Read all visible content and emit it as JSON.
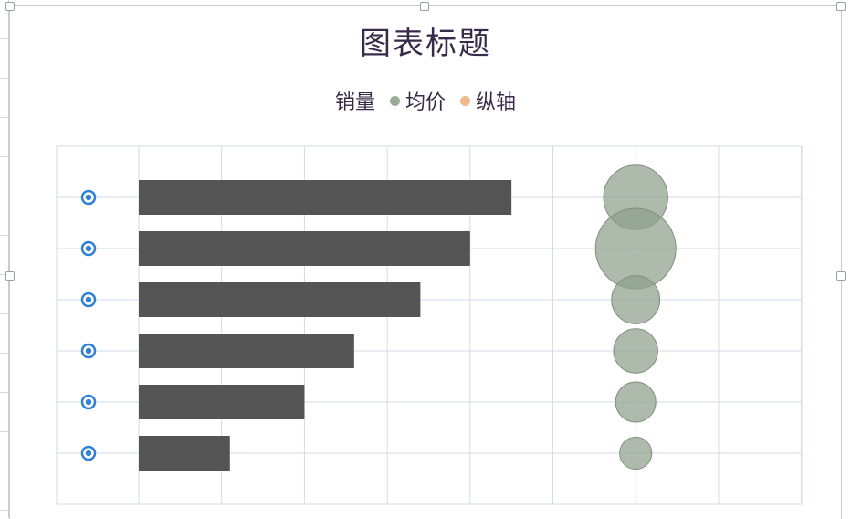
{
  "chart_data": {
    "type": "bar",
    "title": "图表标题",
    "xlabel": "",
    "ylabel": "",
    "legend_position": "top",
    "grid": true,
    "xlim": [
      0,
      80
    ],
    "ylim": [
      0,
      7
    ],
    "bar_color": "#545454",
    "bubble_color": "#8f9f8c",
    "bubble_stroke": "#7f8f7c",
    "secondary_series_color": "#f0b98a",
    "gridline_color": "#d3dbe6",
    "label_marker_color": "#2f80d6",
    "legend": [
      {
        "name": "销量",
        "color": ""
      },
      {
        "name": "均价",
        "color": "#9aab98"
      },
      {
        "name": "纵轴",
        "color": "#f0b98a"
      }
    ],
    "series": [
      {
        "name": "销量",
        "kind": "bar",
        "values": [
          45,
          40,
          34,
          26,
          20,
          11
        ]
      },
      {
        "name": "均价",
        "kind": "bubble",
        "x": 60,
        "y": [
          6,
          5,
          4,
          3,
          2,
          1
        ],
        "size": [
          8,
          10,
          6,
          5.5,
          5,
          4
        ]
      }
    ]
  }
}
